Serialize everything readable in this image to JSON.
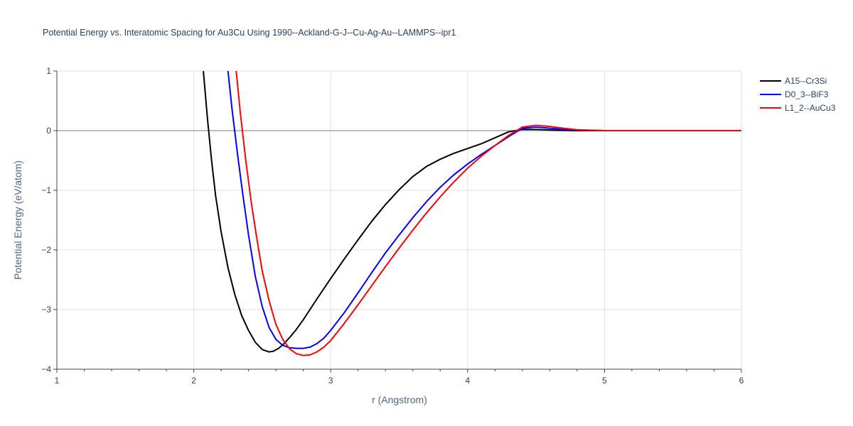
{
  "chart_data": {
    "type": "line",
    "title": "Potential Energy vs. Interatomic Spacing for Au3Cu Using 1990--Ackland-G-J--Cu-Ag-Au--LAMMPS--ipr1",
    "xlabel": "r (Angstrom)",
    "ylabel": "Potential Energy (eV/atom)",
    "xlim": [
      1,
      6
    ],
    "ylim": [
      -4,
      1
    ],
    "x_ticks": [
      "1",
      "2",
      "3",
      "4",
      "5",
      "6"
    ],
    "y_ticks": [
      "1",
      "0",
      "−1",
      "−2",
      "−3",
      "−4"
    ],
    "grid": true,
    "legend_position": "top-right",
    "series": [
      {
        "name": "A15--Cr3Si",
        "color": "#000000",
        "x": [
          2.07,
          2.1,
          2.13,
          2.16,
          2.2,
          2.25,
          2.3,
          2.35,
          2.4,
          2.45,
          2.5,
          2.55,
          2.58,
          2.62,
          2.66,
          2.7,
          2.75,
          2.8,
          2.9,
          3.0,
          3.1,
          3.2,
          3.3,
          3.4,
          3.5,
          3.6,
          3.7,
          3.8,
          3.9,
          4.0,
          4.1,
          4.2,
          4.3,
          4.4,
          4.5,
          4.6,
          4.7,
          4.8,
          5.0,
          6.0
        ],
        "y": [
          1.0,
          0.2,
          -0.5,
          -1.1,
          -1.7,
          -2.3,
          -2.75,
          -3.1,
          -3.35,
          -3.55,
          -3.67,
          -3.71,
          -3.7,
          -3.65,
          -3.57,
          -3.47,
          -3.33,
          -3.17,
          -2.82,
          -2.48,
          -2.15,
          -1.83,
          -1.52,
          -1.24,
          -0.99,
          -0.77,
          -0.6,
          -0.48,
          -0.38,
          -0.3,
          -0.22,
          -0.12,
          -0.02,
          0.02,
          0.02,
          0.01,
          0.005,
          0.0,
          0.0,
          0.0
        ]
      },
      {
        "name": "D0_3--BiF3",
        "color": "#0000ff",
        "x": [
          2.25,
          2.28,
          2.32,
          2.36,
          2.4,
          2.45,
          2.5,
          2.55,
          2.6,
          2.65,
          2.7,
          2.75,
          2.8,
          2.85,
          2.9,
          2.95,
          3.0,
          3.1,
          3.2,
          3.3,
          3.4,
          3.5,
          3.6,
          3.7,
          3.8,
          3.9,
          4.0,
          4.1,
          4.2,
          4.3,
          4.4,
          4.5,
          4.6,
          4.7,
          4.8,
          5.0,
          6.0
        ],
        "y": [
          1.0,
          0.35,
          -0.4,
          -1.1,
          -1.75,
          -2.45,
          -2.95,
          -3.3,
          -3.5,
          -3.6,
          -3.64,
          -3.65,
          -3.65,
          -3.63,
          -3.57,
          -3.48,
          -3.35,
          -3.05,
          -2.72,
          -2.38,
          -2.05,
          -1.75,
          -1.46,
          -1.19,
          -0.95,
          -0.74,
          -0.56,
          -0.4,
          -0.25,
          -0.1,
          0.04,
          0.06,
          0.04,
          0.02,
          0.01,
          0.0,
          0.0
        ]
      },
      {
        "name": "L1_2--AuCu3",
        "color": "#ff0000",
        "x": [
          2.31,
          2.34,
          2.38,
          2.42,
          2.46,
          2.5,
          2.55,
          2.6,
          2.65,
          2.7,
          2.75,
          2.8,
          2.85,
          2.9,
          2.95,
          3.0,
          3.1,
          3.2,
          3.3,
          3.4,
          3.5,
          3.6,
          3.7,
          3.8,
          3.9,
          4.0,
          4.1,
          4.2,
          4.3,
          4.4,
          4.5,
          4.6,
          4.7,
          4.8,
          5.0,
          6.0
        ],
        "y": [
          1.0,
          0.3,
          -0.5,
          -1.2,
          -1.8,
          -2.35,
          -2.85,
          -3.25,
          -3.5,
          -3.66,
          -3.74,
          -3.77,
          -3.76,
          -3.71,
          -3.63,
          -3.52,
          -3.23,
          -2.92,
          -2.6,
          -2.28,
          -1.97,
          -1.67,
          -1.38,
          -1.11,
          -0.86,
          -0.63,
          -0.43,
          -0.25,
          -0.08,
          0.06,
          0.09,
          0.07,
          0.04,
          0.015,
          0.0,
          0.0
        ]
      }
    ]
  }
}
